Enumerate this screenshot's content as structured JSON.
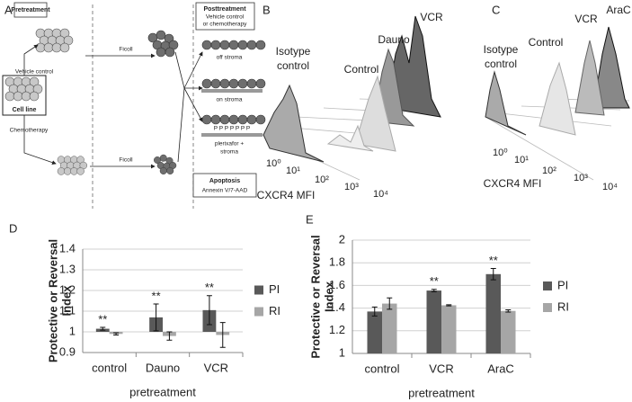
{
  "panel_a": {
    "letter": "A",
    "pretreatment": "Pretreatment",
    "vehicle_control": "Vehicle control",
    "cell_line": "Cell line",
    "chemotherapy": "Chemotherapy",
    "ficoll_top": "Ficoll",
    "ficoll_bottom": "Ficoll",
    "posttreatment": "Posttreatment",
    "posttreatment_sub": [
      "Vehicle control",
      "or chemotherapy"
    ],
    "off_stroma": "off stroma",
    "on_stroma": "on stroma",
    "p_letters": "P P P P P P P",
    "plerixafor": [
      "plerixafor +",
      "stroma"
    ],
    "apoptosis": "Apoptosis",
    "apoptosis_sub": "Annexin V/7-AAD"
  },
  "panel_b": {
    "letter": "B",
    "isotype": [
      "Isotype",
      "control"
    ],
    "control": "Control",
    "dauno": "Dauno",
    "vcr": "VCR",
    "axis_label": "CXCR4 MFI",
    "ticks": [
      "10⁰",
      "10¹",
      "10²",
      "10³",
      "10⁴"
    ]
  },
  "panel_c": {
    "letter": "C",
    "isotype": [
      "Isotype",
      "control"
    ],
    "control": "Control",
    "vcr": "VCR",
    "arac": "AraC",
    "axis_label": "CXCR4 MFI",
    "ticks": [
      "10⁰",
      "10¹",
      "10²",
      "10³",
      "10⁴"
    ]
  },
  "chart_data": [
    {
      "type": "bar",
      "panel": "D",
      "ylabel": [
        "Protective or Reversal",
        "Index"
      ],
      "xlabel": "pretreatment",
      "categories": [
        "control",
        "Dauno",
        "VCR"
      ],
      "bar_base": 1,
      "series": [
        {
          "name": "PI",
          "color": "#595959",
          "values": [
            1.015,
            1.07,
            1.105
          ],
          "errors": [
            0.007,
            0.065,
            0.07
          ],
          "significance": [
            "**",
            "**",
            "**"
          ]
        },
        {
          "name": "RI",
          "color": "#a6a6a6",
          "values": [
            0.99,
            0.98,
            0.985
          ],
          "errors": [
            0.005,
            0.02,
            0.06
          ]
        }
      ],
      "ylim": [
        0.9,
        1.4
      ],
      "yticks": [
        0.9,
        1,
        1.1,
        1.2,
        1.3,
        1.4
      ],
      "grid": true,
      "legend": "right"
    },
    {
      "type": "bar",
      "panel": "E",
      "ylabel": [
        "Protective or Reversal",
        "Index"
      ],
      "xlabel": "pretreatment",
      "categories": [
        "control",
        "VCR",
        "AraC"
      ],
      "bar_base": 1,
      "series": [
        {
          "name": "PI",
          "color": "#595959",
          "values": [
            1.37,
            1.555,
            1.7
          ],
          "errors": [
            0.04,
            0.01,
            0.05
          ],
          "significance": [
            null,
            "**",
            "**"
          ]
        },
        {
          "name": "RI",
          "color": "#a6a6a6",
          "values": [
            1.44,
            1.425,
            1.375
          ],
          "errors": [
            0.05,
            0.005,
            0.01
          ]
        }
      ],
      "ylim": [
        1,
        2
      ],
      "yticks": [
        1,
        1.2,
        1.4,
        1.6,
        1.8,
        2
      ],
      "grid": true,
      "legend": "right"
    }
  ]
}
